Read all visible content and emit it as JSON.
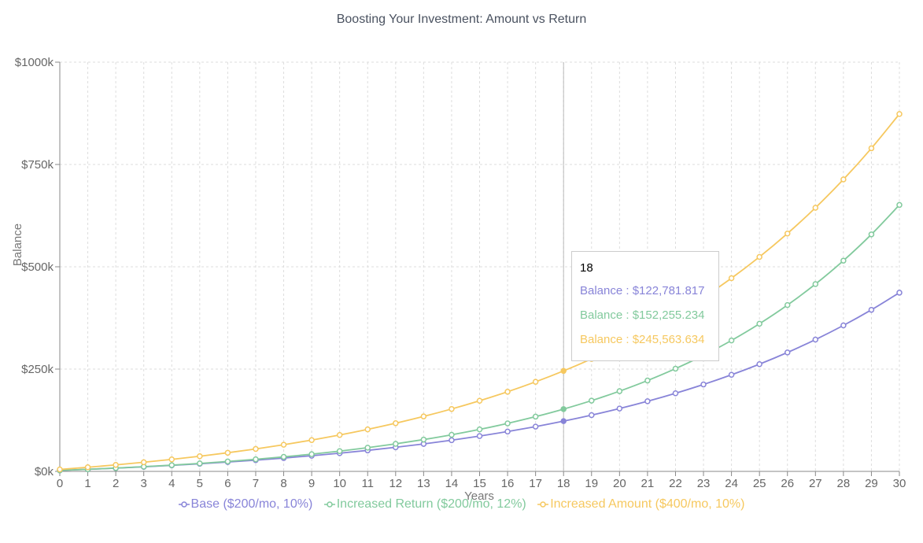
{
  "chart_data": {
    "type": "line",
    "title": "Boosting Your Investment: Amount vs Return",
    "xlabel": "Years",
    "ylabel": "Balance",
    "x": [
      0,
      1,
      2,
      3,
      4,
      5,
      6,
      7,
      8,
      9,
      10,
      11,
      12,
      13,
      14,
      15,
      16,
      17,
      18,
      19,
      20,
      21,
      22,
      23,
      24,
      25,
      26,
      27,
      28,
      29,
      30
    ],
    "ylim": [
      0,
      1000000
    ],
    "y_ticks": [
      0,
      250000,
      500000,
      750000,
      1000000
    ],
    "y_tick_labels": [
      "$0k",
      "$250k",
      "$500k",
      "$750k",
      "$1000k"
    ],
    "grid": true,
    "legend_position": "bottom",
    "series": [
      {
        "name": "Base ($200/mo, 10%)",
        "color": "#8884d8",
        "values": [
          2400,
          5040,
          7944,
          11138,
          14652,
          18518,
          22769,
          27446,
          32591,
          38250,
          44475,
          51322,
          58855,
          67140,
          76254,
          86280,
          97308,
          109439,
          122781,
          137460,
          153606,
          171367,
          190903,
          212394,
          236033,
          262037,
          290640,
          322104,
          356715,
          394786,
          436665
        ]
      },
      {
        "name": "Increased Return ($200/mo, 12%)",
        "color": "#82ca9d",
        "values": [
          2400,
          5088,
          8099,
          11471,
          15247,
          19477,
          24214,
          29520,
          35462,
          42118,
          49572,
          57921,
          67272,
          77744,
          89473,
          102610,
          117323,
          133802,
          152255,
          172926,
          196077,
          222006,
          251047,
          283573,
          320002,
          360802,
          406498,
          457678,
          515000,
          579200,
          651104
        ]
      },
      {
        "name": "Increased Amount ($400/mo, 10%)",
        "color": "#f6c85f",
        "values": [
          4800,
          10080,
          15888,
          22277,
          29305,
          37035,
          45539,
          54893,
          65182,
          76500,
          88950,
          102645,
          117710,
          134281,
          152509,
          172560,
          194616,
          218877,
          245563,
          274919,
          307211,
          342732,
          381805,
          424786,
          472064,
          524070,
          581277,
          644205,
          713425,
          789568,
          873324
        ]
      }
    ],
    "tooltip": {
      "title": "18",
      "x": 18,
      "rows": [
        "Balance : $122,781.817",
        "Balance : $152,255.234",
        "Balance : $245,563.634"
      ]
    }
  }
}
